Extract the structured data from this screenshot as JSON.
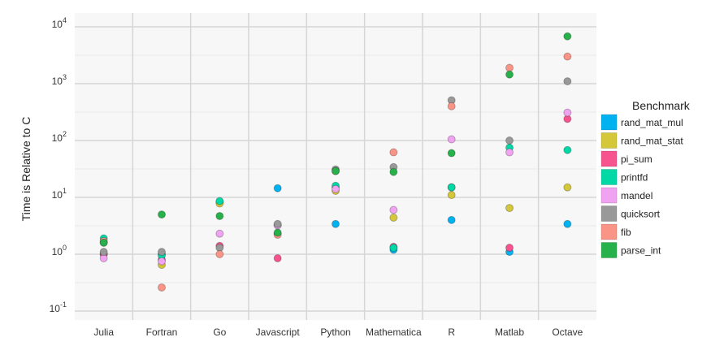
{
  "chart_data": {
    "type": "scatter",
    "ylabel": "Time is Relative to C",
    "yscale": "log",
    "ylim": [
      0.07,
      15000
    ],
    "ytick_values": [
      0.1,
      1,
      10,
      100,
      1000,
      10000
    ],
    "ytick_base": "10",
    "ytick_exponents": [
      "-1",
      "0",
      "1",
      "2",
      "3",
      "4"
    ],
    "grid": true,
    "legend_position": "right",
    "legend_title": "Benchmark",
    "categories": [
      "Julia",
      "Fortran",
      "Go",
      "Javascript",
      "Python",
      "Mathematica",
      "R",
      "Matlab",
      "Octave"
    ],
    "series": [
      {
        "name": "rand_mat_mul",
        "color": "#00b2f0",
        "values": [
          1.0,
          1.0,
          8.2,
          14.5,
          3.4,
          1.2,
          4.0,
          1.1,
          3.4
        ]
      },
      {
        "name": "rand_mat_stat",
        "color": "#d4c73a",
        "values": [
          1.6,
          0.65,
          7.8,
          3.3,
          13.0,
          4.4,
          11.0,
          6.5,
          15.0
        ]
      },
      {
        "name": "pi_sum",
        "color": "#f6538f",
        "values": [
          1.0,
          0.8,
          1.4,
          0.85,
          15.0,
          1.35,
          15.0,
          1.3,
          240
        ]
      },
      {
        "name": "printfd",
        "color": "#00d9a5",
        "values": [
          1.9,
          0.95,
          8.6,
          2.3,
          16.0,
          1.3,
          15.0,
          75,
          68
        ]
      },
      {
        "name": "mandel",
        "color": "#f0a3f0",
        "values": [
          0.85,
          0.75,
          2.3,
          3.2,
          14.0,
          6.0,
          105,
          62,
          310
        ]
      },
      {
        "name": "quicksort",
        "color": "#999999",
        "values": [
          1.1,
          1.1,
          1.3,
          3.4,
          31,
          34,
          510,
          100,
          1100
        ]
      },
      {
        "name": "fib",
        "color": "#f99486",
        "values": [
          1.7,
          0.26,
          1.0,
          2.2,
          29,
          62,
          400,
          1900,
          3000
        ]
      },
      {
        "name": "parse_int",
        "color": "#27b14a",
        "values": [
          1.6,
          5.0,
          4.7,
          2.4,
          29,
          28,
          60,
          1450,
          6800
        ]
      }
    ]
  }
}
